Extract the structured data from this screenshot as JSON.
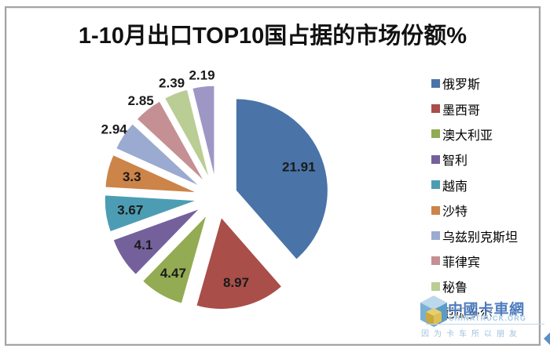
{
  "chart_data": {
    "type": "pie",
    "title": "1-10月出口TOP10国占据的市场份额%",
    "unit": "%",
    "categories": [
      "俄罗斯",
      "墨西哥",
      "澳大利亚",
      "智利",
      "越南",
      "沙特",
      "乌兹别克斯坦",
      "菲律宾",
      "秘鲁",
      "厄瓜多尔"
    ],
    "values": [
      21.91,
      8.97,
      4.47,
      4.1,
      3.67,
      3.3,
      2.94,
      2.85,
      2.39,
      2.19
    ],
    "colors": [
      "#4a74a8",
      "#a94e49",
      "#93ab53",
      "#74619c",
      "#4c9db3",
      "#cc8449",
      "#9aaad0",
      "#c49093",
      "#b9cd95",
      "#9e97c6"
    ],
    "legend_position": "right",
    "exploded": true,
    "data_labels_shown": true,
    "label_color": "#1a1a1a",
    "start_angle_deg": 0
  },
  "frame": {
    "border_color": "#a3a3a3"
  },
  "watermark": {
    "logo": "chinatruck-cube-logo",
    "brand_text": "中國卡車網",
    "domain_text": "CHINATRUCK.ORG",
    "slogan_text": "因为卡车所以朋友",
    "brand_color": "#3d6fb8",
    "light_blue": "#a5c8e5",
    "corner_arrow_color": "#5c8fc7"
  }
}
